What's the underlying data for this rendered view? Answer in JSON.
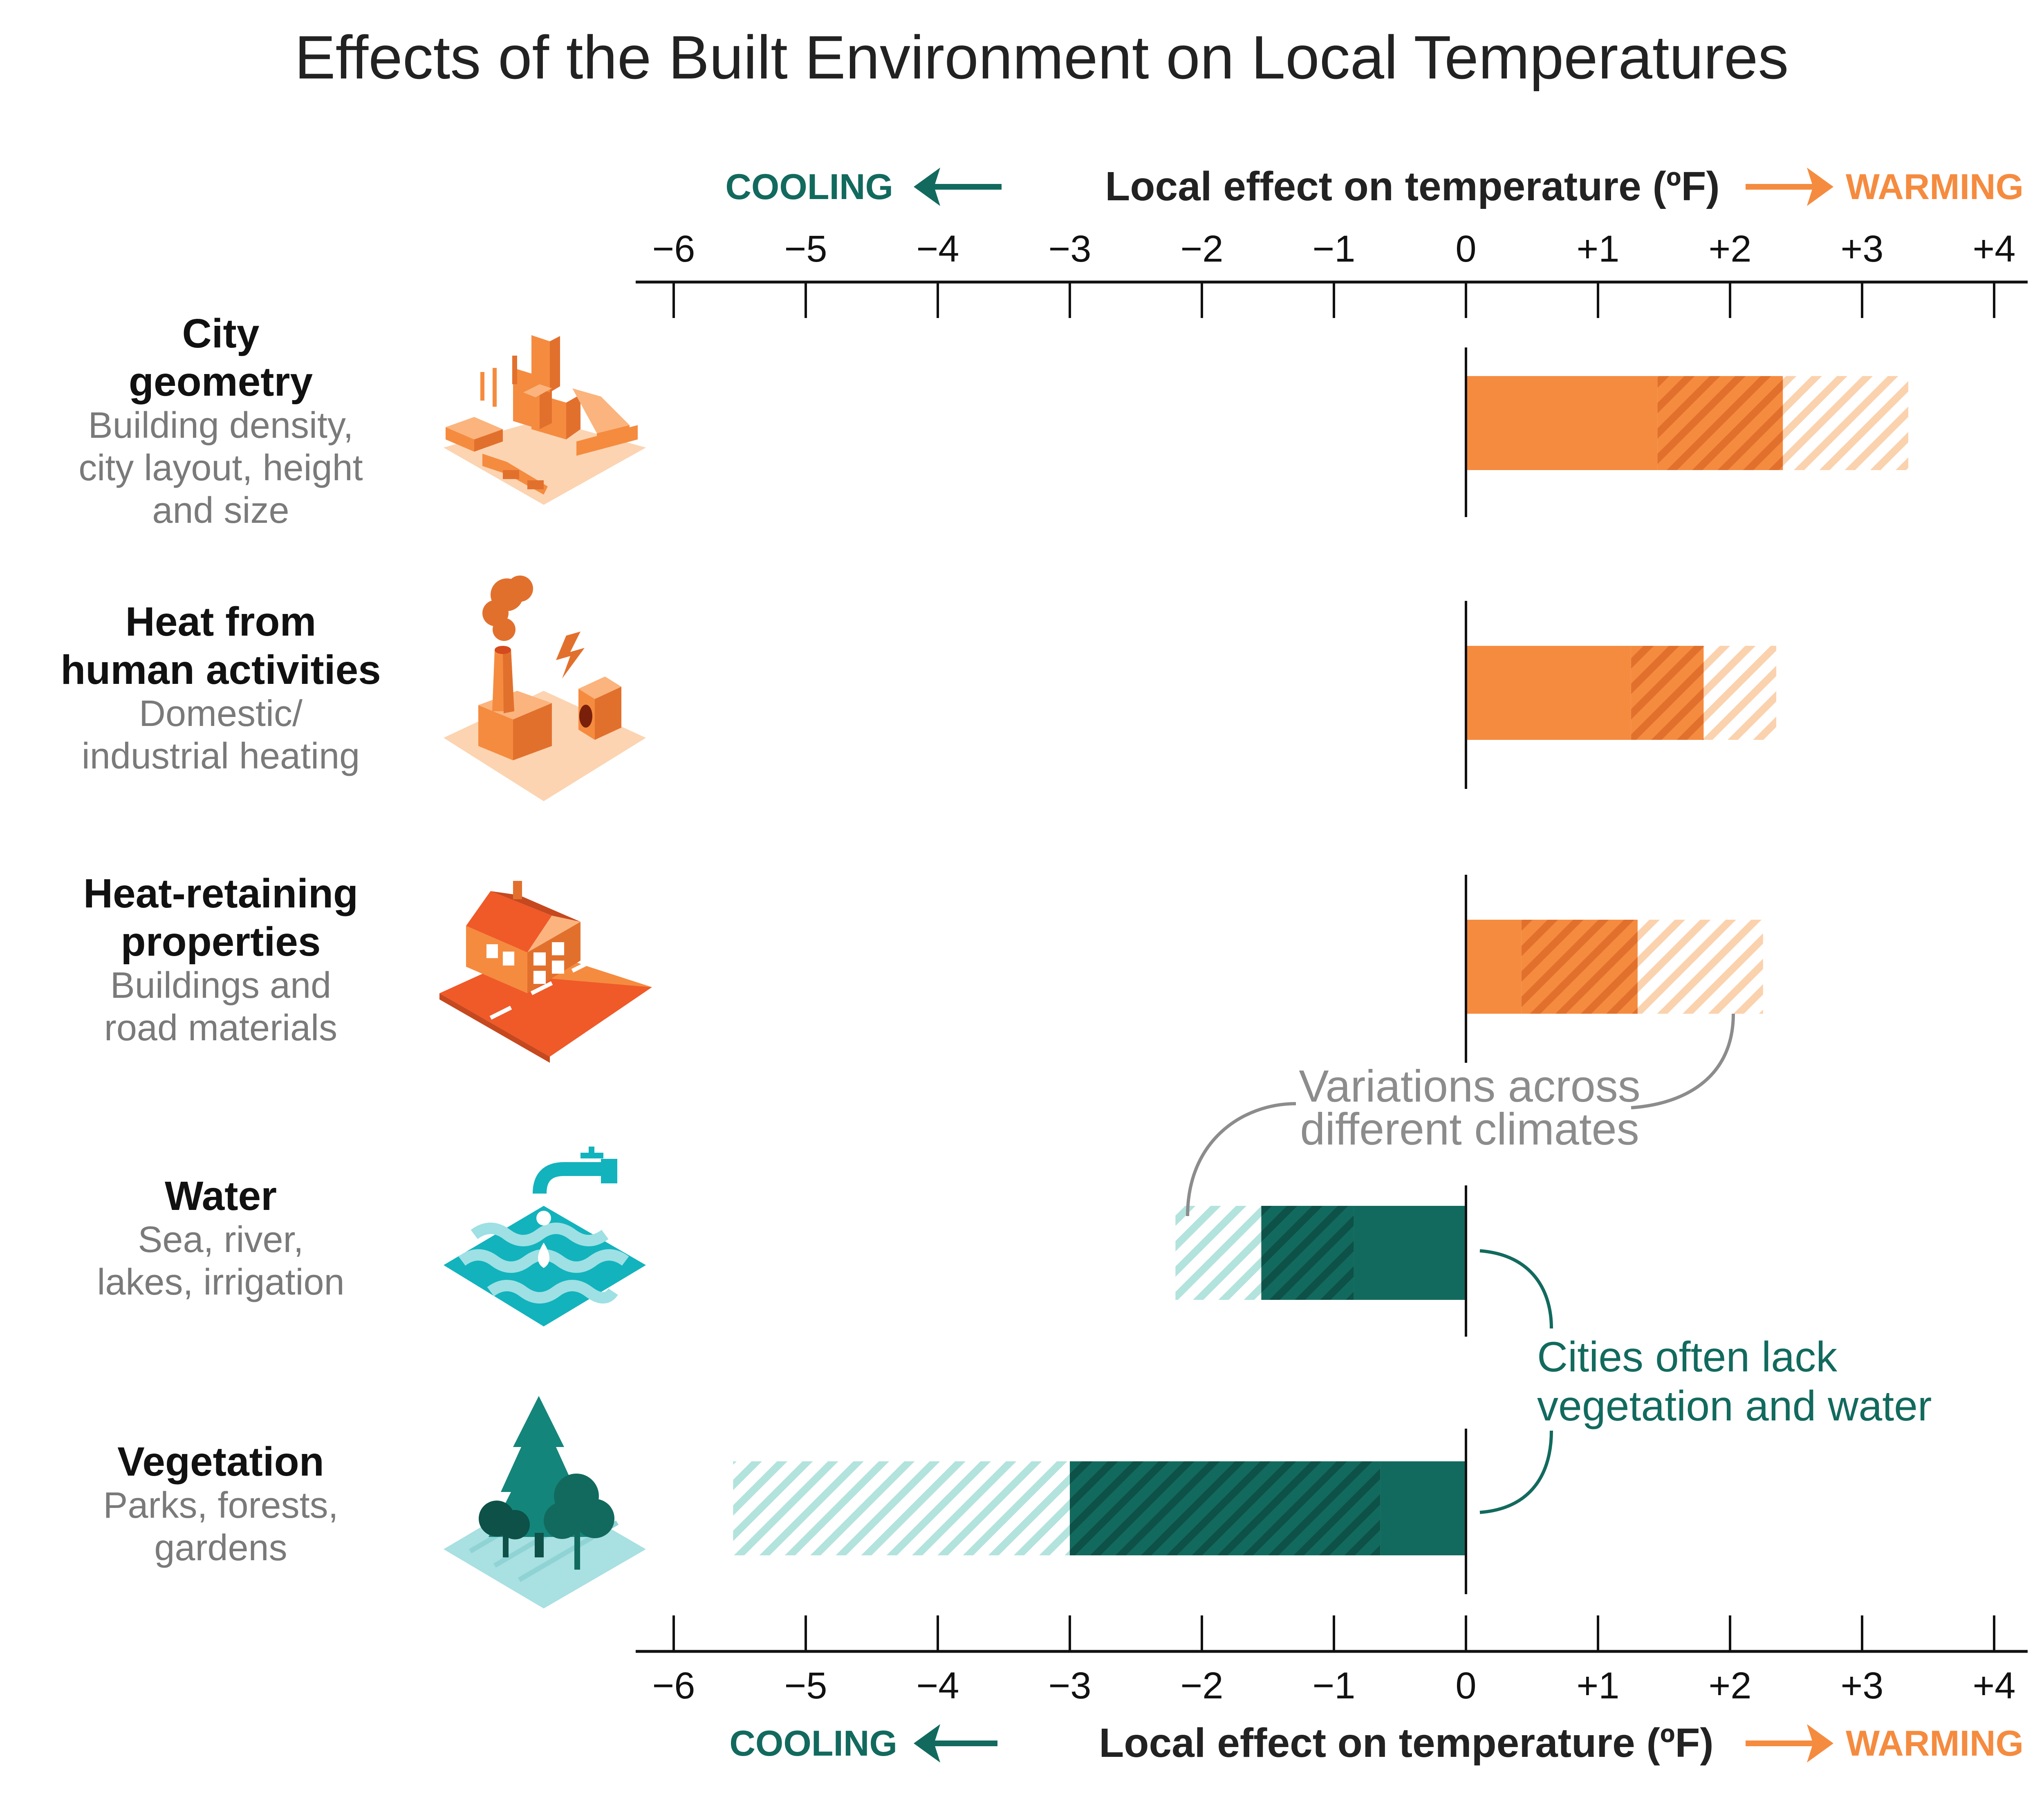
{
  "title": "Effects of the Built Environment on Local Temperatures",
  "axis": {
    "title": "Local effect on temperature (ºF)",
    "cooling_label": "COOLING",
    "warming_label": "WARMING",
    "ticks": [
      "−6",
      "−5",
      "−4",
      "−3",
      "−2",
      "−1",
      "0",
      "+1",
      "+2",
      "+3",
      "+4"
    ]
  },
  "colors": {
    "warm": "#f58b3f",
    "warm_light": "#fbd2ae",
    "warm_dark": "#e2702d",
    "cool": "#126a5e",
    "cool_light": "#b3e3dd",
    "cool_dark": "#0d5148",
    "annotation_gray": "#8c8c8c"
  },
  "chart_data": {
    "type": "bar",
    "orientation": "horizontal",
    "xlim": [
      -6,
      4
    ],
    "x_ticks": [
      -6,
      -5,
      -4,
      -3,
      -2,
      -1,
      0,
      1,
      2,
      3,
      4
    ],
    "categories": [
      {
        "name": [
          "City",
          "geometry"
        ],
        "description": [
          "Building density,",
          "city layout, height",
          "and size"
        ],
        "icon": "city-buildings-icon",
        "solid": [
          0,
          1.45
        ],
        "overlap": [
          1.45,
          2.4
        ],
        "range": [
          2.4,
          3.35
        ]
      },
      {
        "name": [
          "Heat from",
          "human activities"
        ],
        "description": [
          "Domestic/",
          "industrial heating"
        ],
        "icon": "factory-icon",
        "solid": [
          0,
          1.25
        ],
        "overlap": [
          1.25,
          1.8
        ],
        "range": [
          1.8,
          2.35
        ]
      },
      {
        "name": [
          "Heat-retaining",
          "properties"
        ],
        "description": [
          "Buildings and",
          "road materials"
        ],
        "icon": "house-road-icon",
        "solid": [
          0,
          0.42
        ],
        "overlap": [
          0.42,
          1.3
        ],
        "range": [
          1.3,
          2.25
        ]
      },
      {
        "name": [
          "Water"
        ],
        "description": [
          "Sea, river,",
          "lakes, irrigation"
        ],
        "icon": "water-tap-icon",
        "solid": [
          -0.85,
          0
        ],
        "overlap": [
          -1.55,
          -0.85
        ],
        "range": [
          -2.2,
          -1.55
        ]
      },
      {
        "name": [
          "Vegetation"
        ],
        "description": [
          "Parks, forests,",
          "gardens"
        ],
        "icon": "trees-icon",
        "solid": [
          -0.65,
          0
        ],
        "overlap": [
          -3.0,
          -0.65
        ],
        "range": [
          -5.55,
          -3.0
        ]
      }
    ]
  },
  "annotations": {
    "variations": [
      "Variations across",
      "different climates"
    ],
    "lack": [
      "Cities often lack",
      "vegetation and water"
    ]
  }
}
